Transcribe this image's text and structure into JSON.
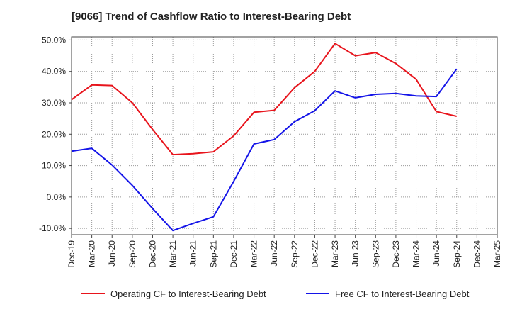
{
  "chart_data": {
    "type": "line",
    "title": "[9066]  Trend of Cashflow Ratio to Interest-Bearing Debt",
    "xlabel": "",
    "ylabel": "",
    "categories": [
      "Dec-19",
      "Mar-20",
      "Jun-20",
      "Sep-20",
      "Dec-20",
      "Mar-21",
      "Jun-21",
      "Sep-21",
      "Dec-21",
      "Mar-22",
      "Jun-22",
      "Sep-22",
      "Dec-22",
      "Mar-23",
      "Jun-23",
      "Sep-23",
      "Dec-23",
      "Mar-24",
      "Jun-24",
      "Sep-24",
      "Dec-24",
      "Mar-25"
    ],
    "ylim": [
      -12,
      51
    ],
    "yticks": [
      -10,
      0,
      10,
      20,
      30,
      40,
      50
    ],
    "ytick_labels": [
      "-10.0%",
      "0.0%",
      "10.0%",
      "20.0%",
      "30.0%",
      "40.0%",
      "50.0%"
    ],
    "grid": true,
    "legend_position": "bottom",
    "series": [
      {
        "name": "Operating CF to Interest-Bearing Debt",
        "color": "#e8141c",
        "values": [
          31.0,
          35.7,
          35.5,
          30.0,
          21.5,
          13.5,
          13.8,
          14.4,
          19.5,
          27.0,
          27.6,
          34.8,
          40.0,
          48.9,
          45.0,
          46.0,
          42.5,
          37.5,
          27.2,
          25.7,
          null,
          null
        ]
      },
      {
        "name": "Free CF to Interest-Bearing Debt",
        "color": "#1414e8",
        "values": [
          14.6,
          15.5,
          10.2,
          3.7,
          -3.7,
          -10.7,
          -8.4,
          -6.3,
          5.0,
          16.9,
          18.3,
          24.0,
          27.5,
          33.8,
          31.6,
          32.7,
          33.0,
          32.2,
          32.0,
          40.8,
          null,
          null
        ]
      }
    ]
  }
}
